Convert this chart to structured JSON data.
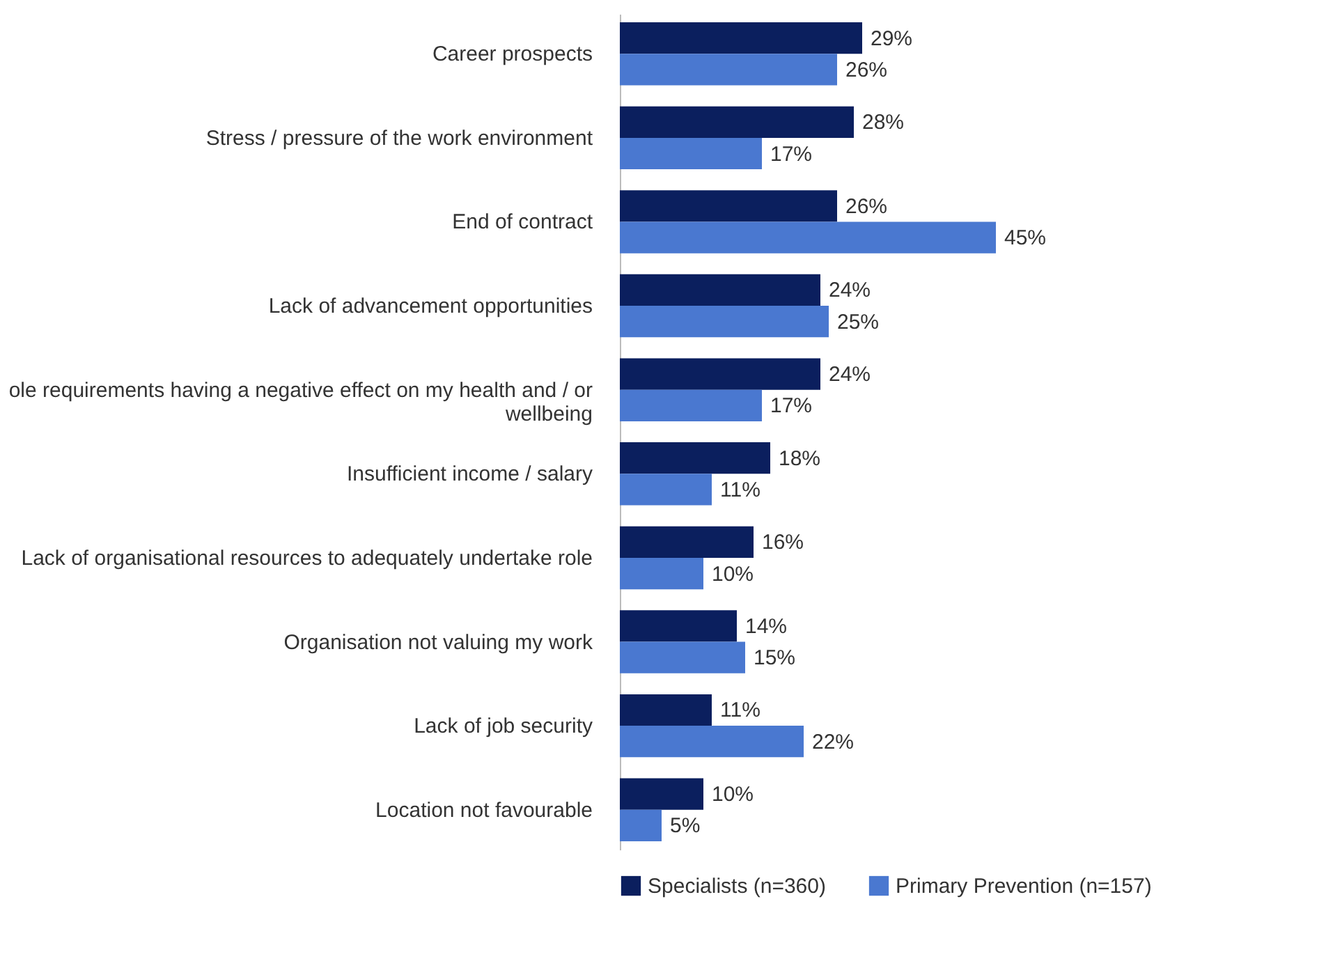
{
  "chart_data": {
    "type": "bar",
    "orientation": "horizontal",
    "categories": [
      "Career prospects",
      "Stress / pressure of the work environment",
      "End of contract",
      "Lack of advancement opportunities",
      "ole requirements having a negative effect on my health and / or wellbeing",
      "Insufficient income / salary",
      "Lack of organisational resources to adequately undertake role",
      "Organisation not valuing my work",
      "Lack of job security",
      "Location not favourable"
    ],
    "series": [
      {
        "name": "Specialists (n=360)",
        "color": "#0b1f5e",
        "values": [
          29,
          28,
          26,
          24,
          24,
          18,
          16,
          14,
          11,
          10
        ],
        "value_labels": [
          "29%",
          "28%",
          "26%",
          "24%",
          "24%",
          "18%",
          "16%",
          "14%",
          "11%",
          "10%"
        ]
      },
      {
        "name": "Primary Prevention (n=157)",
        "color": "#4a78d0",
        "values": [
          26,
          17,
          45,
          25,
          17,
          11,
          10,
          15,
          22,
          5
        ],
        "value_labels": [
          "26%",
          "17%",
          "45%",
          "25%",
          "17%",
          "11%",
          "10%",
          "15%",
          "22%",
          "5%"
        ]
      }
    ],
    "legend": "bottom",
    "grid": false
  }
}
